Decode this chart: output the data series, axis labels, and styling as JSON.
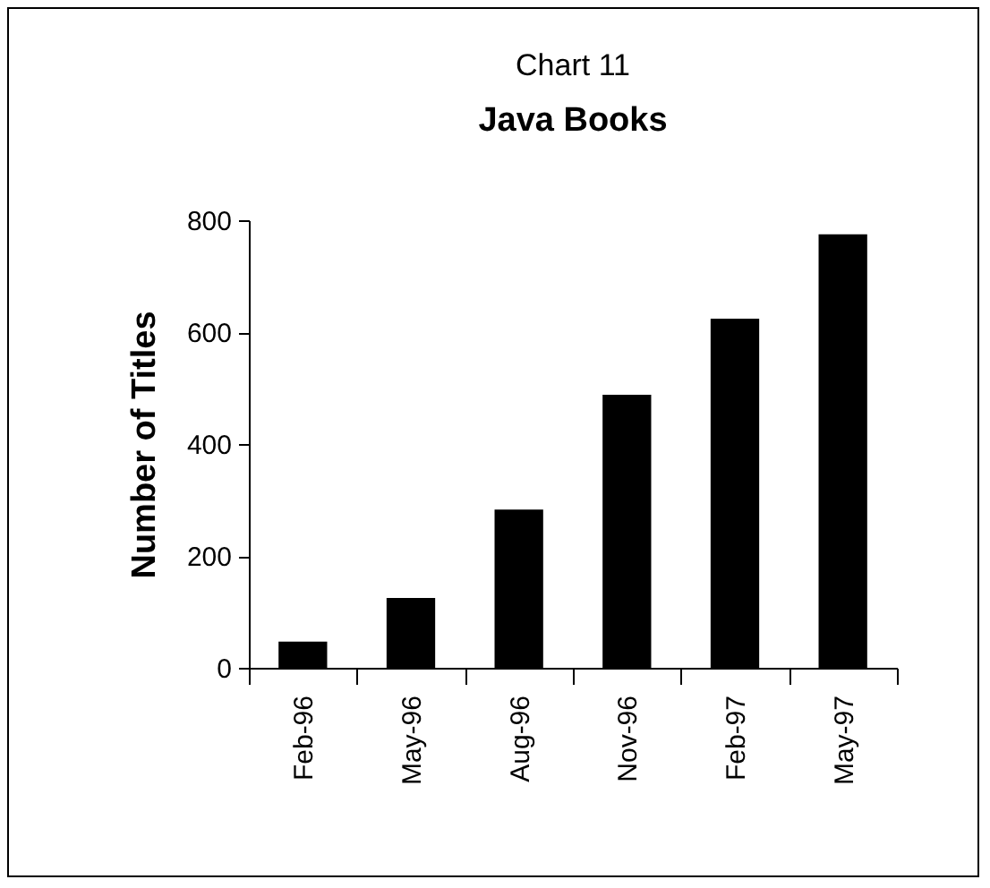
{
  "chart_data": {
    "type": "bar",
    "title": "Chart 11",
    "subtitle": "Java Books",
    "ylabel": "Number of Titles",
    "categories": [
      "Feb-96",
      "May-96",
      "Aug-96",
      "Nov-96",
      "Feb-97",
      "May-97"
    ],
    "values": [
      47,
      125,
      283,
      488,
      624,
      775
    ],
    "color": "#000000",
    "ylim": [
      0,
      800
    ],
    "yticks": [
      0,
      200,
      400,
      600,
      800
    ],
    "grid": false
  }
}
